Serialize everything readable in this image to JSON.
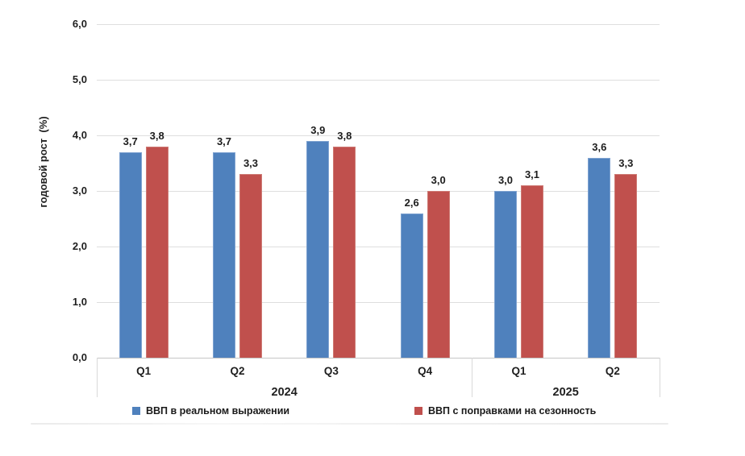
{
  "chart_data": {
    "type": "bar",
    "title": "",
    "xlabel": "",
    "ylabel": "годовой рост  (%)",
    "ylim": [
      0,
      6
    ],
    "ytick_step": 1,
    "ytick_labels": [
      "0,0",
      "1,0",
      "2,0",
      "3,0",
      "4,0",
      "5,0",
      "6,0"
    ],
    "decimal_separator": ",",
    "grid": true,
    "legend_position": "bottom",
    "categories": [
      "Q1",
      "Q2",
      "Q3",
      "Q4",
      "Q1",
      "Q2"
    ],
    "groups": [
      {
        "label": "2024",
        "span": 4
      },
      {
        "label": "2025",
        "span": 2
      }
    ],
    "series": [
      {
        "name": "ВВП в реальном выражении",
        "color": "#4F81BD",
        "border_color": "#7FA3D1",
        "values": [
          3.7,
          3.7,
          3.9,
          2.6,
          3.0,
          3.6
        ]
      },
      {
        "name": "ВВП с поправками на сезонность",
        "color": "#C0504D",
        "border_color": "#CE7A74",
        "values": [
          3.8,
          3.3,
          3.8,
          3.0,
          3.1,
          3.3
        ]
      }
    ]
  }
}
